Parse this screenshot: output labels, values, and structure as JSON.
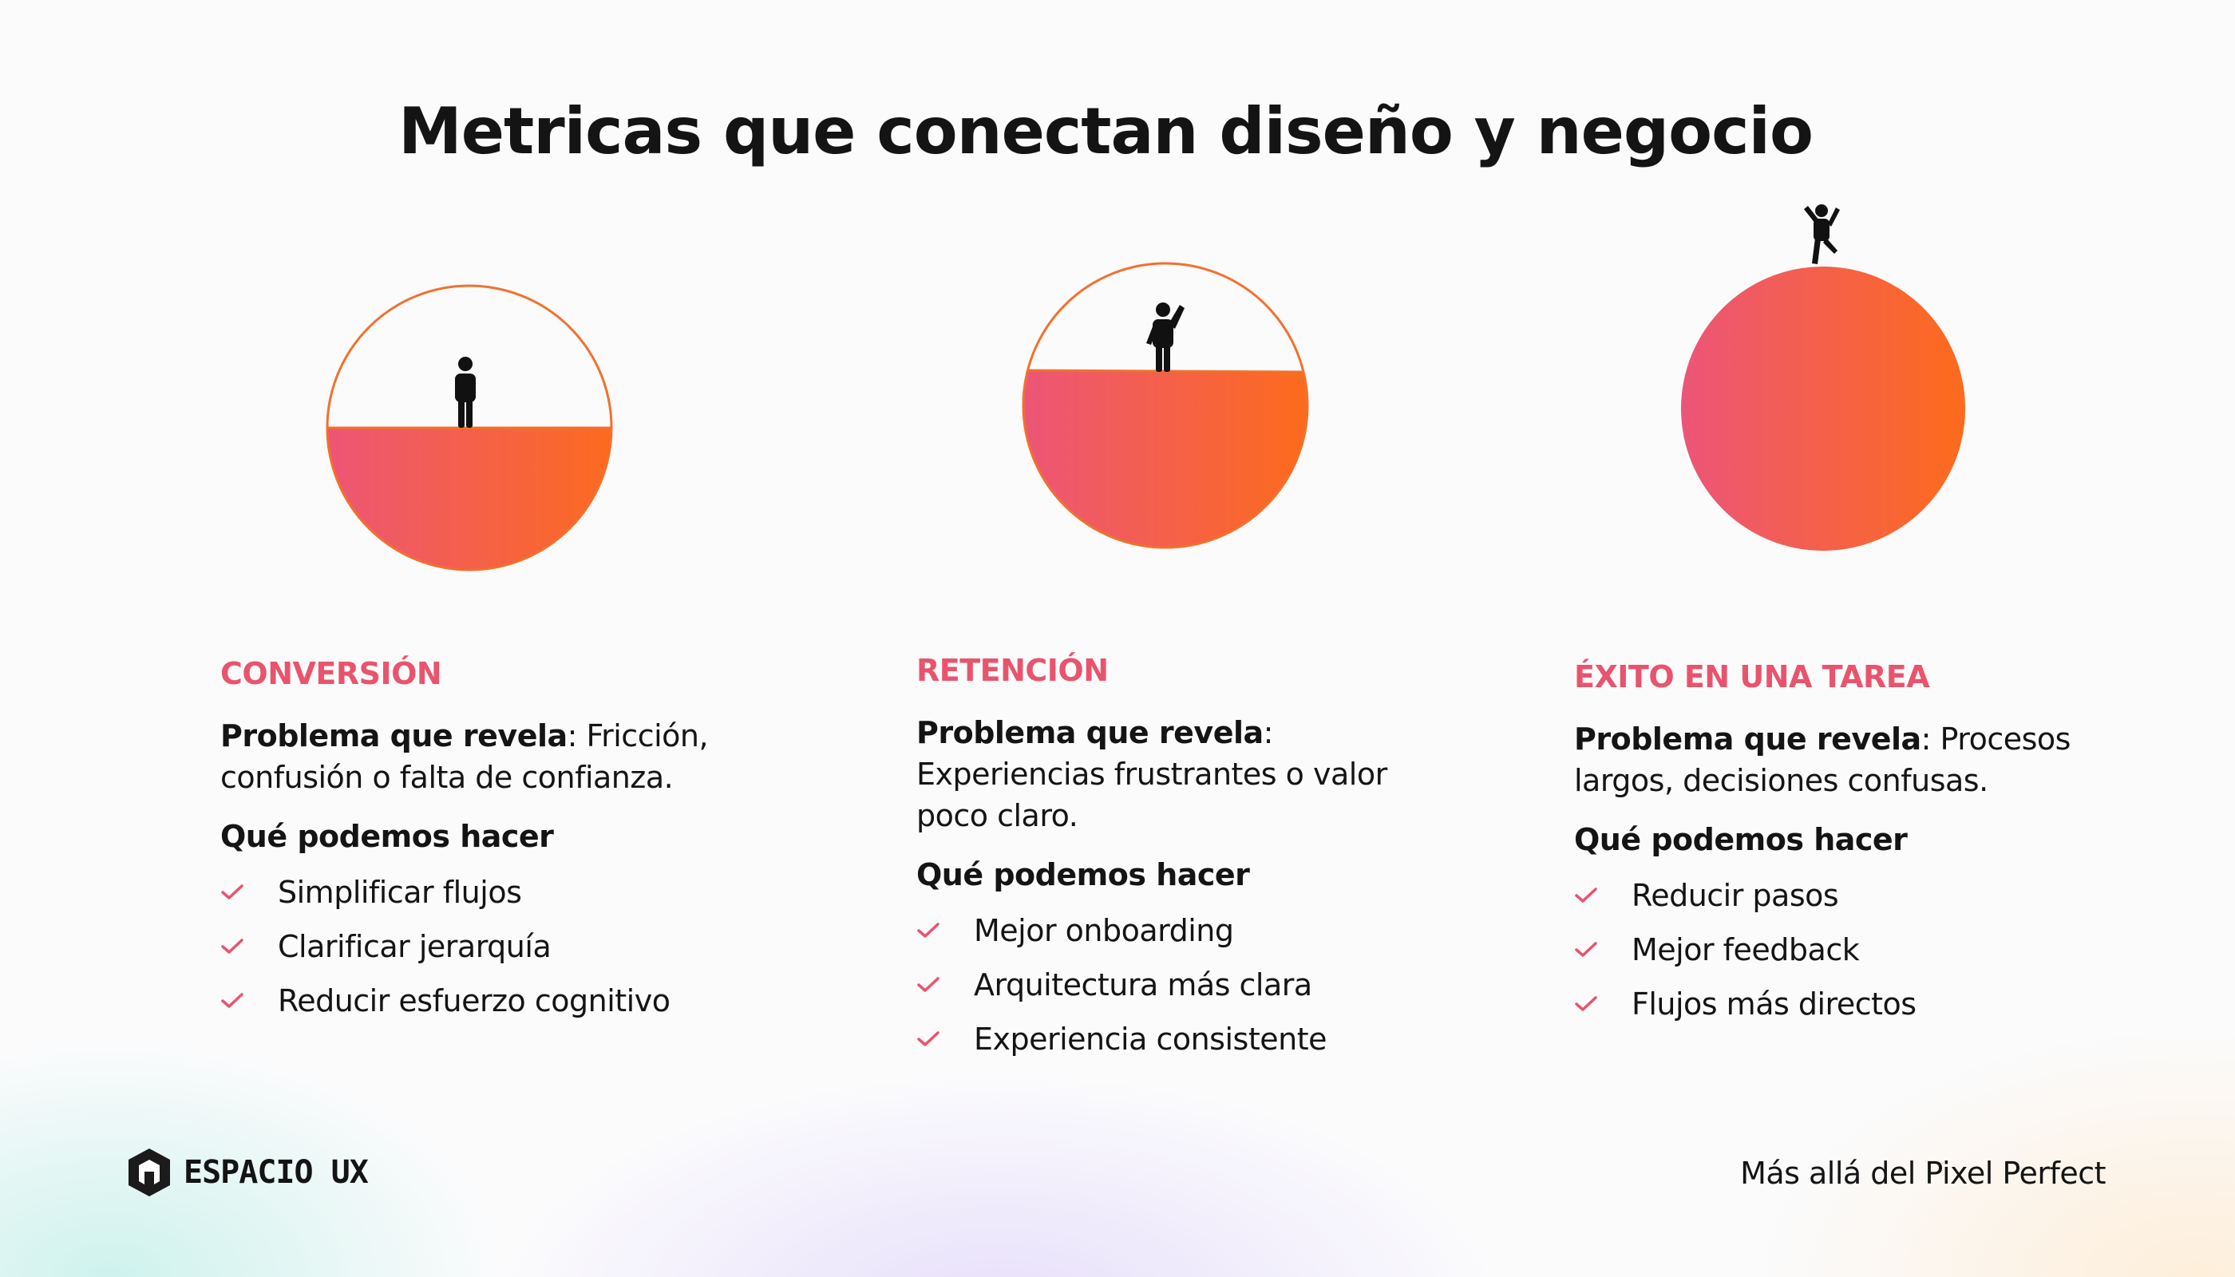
{
  "title": "Metricas que conectan diseño y negocio",
  "colors": {
    "accent": "#e9546d",
    "gradient_start": "#ec5578",
    "gradient_end": "#fd6b1c",
    "text": "#141414"
  },
  "metrics": [
    {
      "name": "CONVERSIÓN",
      "fill_level": 0.5,
      "problem_label": "Problema que revela",
      "problem_text": ": Fricción, confusión o falta de confianza.",
      "actions_title": "Qué podemos hacer",
      "actions": [
        "Simplificar flujos",
        "Clarificar jerarquía",
        "Reducir esfuerzo cognitivo"
      ]
    },
    {
      "name": "RETENCIÓN",
      "fill_level": 0.63,
      "problem_label": "Problema que revela",
      "problem_text": ": Experiencias frustrantes o valor poco claro.",
      "actions_title": "Qué podemos hacer",
      "actions": [
        "Mejor onboarding",
        "Arquitectura más clara",
        "Experiencia consistente"
      ]
    },
    {
      "name": "ÉXITO EN UNA TAREA",
      "fill_level": 1.0,
      "problem_label": "Problema que revela",
      "problem_text": ": Procesos largos, decisiones confusas.",
      "actions_title": "Qué podemos hacer",
      "actions": [
        "Reducir pasos",
        "Mejor feedback",
        "Flujos más directos"
      ]
    }
  ],
  "footer": {
    "logo_text": "ESPACIO UX",
    "tagline": "Más allá del Pixel Perfect"
  },
  "icons": [
    "person-standing-icon",
    "person-waving-icon",
    "person-celebrating-icon",
    "check-icon",
    "espacio-ux-logo-icon"
  ]
}
